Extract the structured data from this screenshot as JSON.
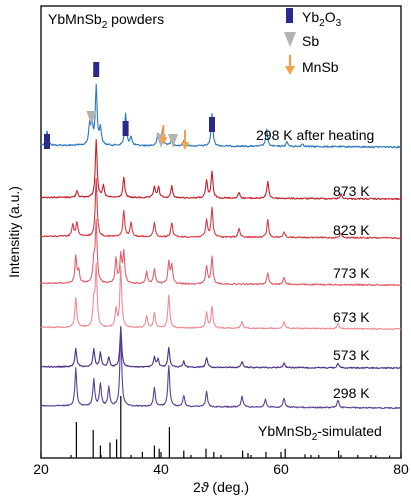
{
  "chart_data": {
    "type": "line",
    "title_prefix": "YbMnSb",
    "title_sub": "2",
    "title_suffix": " powders",
    "xlabel_main": "2",
    "xlabel_theta": "ϑ",
    "xlabel_unit": " (deg.)",
    "ylabel": "Intensitiy (a.u.)",
    "xlim": [
      20,
      80
    ],
    "x_ticks": [
      "20",
      "40",
      "60",
      "80"
    ],
    "x_tick_values": [
      20,
      40,
      60,
      80
    ],
    "legend": [
      {
        "label": "Yb",
        "sub": "2",
        "label2": "O",
        "sub2": "3",
        "marker": "bar",
        "color": "#2a2a8c"
      },
      {
        "label": "Sb",
        "marker": "triangle",
        "color": "#b3b3b3"
      },
      {
        "label": "MnSb",
        "marker": "arrow",
        "color": "#f5a04a"
      }
    ],
    "series": [
      {
        "name": "298 K after heating",
        "color": "#2a78c0",
        "peaks": [
          [
            21.0,
            0.25
          ],
          [
            28.1,
            0.35
          ],
          [
            28.5,
            0.35
          ],
          [
            29.2,
            1.0
          ],
          [
            29.9,
            0.3
          ],
          [
            34.1,
            0.55
          ],
          [
            35.0,
            0.15
          ],
          [
            39.5,
            0.2
          ],
          [
            40.3,
            0.3
          ],
          [
            41.8,
            0.15
          ],
          [
            43.9,
            0.1
          ],
          [
            48.5,
            0.55
          ],
          [
            57.6,
            0.3
          ],
          [
            61.0,
            0.08
          ],
          [
            63.6,
            0.05
          ]
        ]
      },
      {
        "name": "873 K",
        "color": "#c81e28",
        "peaks": [
          [
            26.0,
            0.12
          ],
          [
            29.2,
            1.0
          ],
          [
            30.4,
            0.2
          ],
          [
            33.8,
            0.35
          ],
          [
            38.9,
            0.2
          ],
          [
            39.6,
            0.18
          ],
          [
            41.8,
            0.2
          ],
          [
            47.6,
            0.3
          ],
          [
            48.5,
            0.45
          ],
          [
            53.0,
            0.1
          ],
          [
            57.8,
            0.3
          ],
          [
            70.0,
            0.08
          ]
        ]
      },
      {
        "name": "823 K",
        "color": "#d83a45",
        "peaks": [
          [
            25.3,
            0.2
          ],
          [
            26.0,
            0.25
          ],
          [
            29.2,
            1.0
          ],
          [
            33.8,
            0.45
          ],
          [
            35.0,
            0.25
          ],
          [
            38.9,
            0.25
          ],
          [
            41.8,
            0.25
          ],
          [
            47.6,
            0.3
          ],
          [
            48.5,
            0.5
          ],
          [
            53.0,
            0.15
          ],
          [
            57.8,
            0.3
          ],
          [
            60.5,
            0.1
          ],
          [
            70.0,
            0.08
          ]
        ]
      },
      {
        "name": "773 K",
        "color": "#e65d6a",
        "peaks": [
          [
            25.8,
            0.45
          ],
          [
            26.3,
            0.2
          ],
          [
            28.8,
            0.35
          ],
          [
            29.2,
            1.0
          ],
          [
            32.5,
            0.4
          ],
          [
            33.3,
            0.45
          ],
          [
            33.8,
            0.5
          ],
          [
            37.6,
            0.2
          ],
          [
            38.9,
            0.25
          ],
          [
            41.3,
            0.35
          ],
          [
            41.8,
            0.3
          ],
          [
            47.6,
            0.3
          ],
          [
            48.5,
            0.45
          ],
          [
            57.8,
            0.2
          ],
          [
            60.5,
            0.12
          ]
        ]
      },
      {
        "name": "673 K",
        "color": "#f08a94",
        "peaks": [
          [
            25.8,
            0.5
          ],
          [
            28.8,
            0.4
          ],
          [
            29.2,
            1.0
          ],
          [
            32.5,
            0.3
          ],
          [
            33.3,
            1.0
          ],
          [
            37.6,
            0.2
          ],
          [
            38.9,
            0.25
          ],
          [
            41.3,
            0.55
          ],
          [
            47.6,
            0.25
          ],
          [
            48.5,
            0.35
          ],
          [
            53.5,
            0.12
          ],
          [
            60.5,
            0.12
          ],
          [
            69.5,
            0.1
          ]
        ]
      },
      {
        "name": "573 K",
        "color": "#4a2f88",
        "peaks": [
          [
            25.8,
            0.45
          ],
          [
            28.8,
            0.45
          ],
          [
            29.9,
            0.35
          ],
          [
            31.3,
            0.25
          ],
          [
            33.3,
            1.0
          ],
          [
            38.9,
            0.25
          ],
          [
            39.5,
            0.2
          ],
          [
            41.3,
            0.5
          ],
          [
            43.8,
            0.15
          ],
          [
            47.6,
            0.25
          ],
          [
            53.5,
            0.15
          ],
          [
            60.5,
            0.12
          ],
          [
            69.5,
            0.1
          ]
        ]
      },
      {
        "name": "298 K",
        "color": "#5a3f98",
        "peaks": [
          [
            25.8,
            0.5
          ],
          [
            28.8,
            0.35
          ],
          [
            29.9,
            0.3
          ],
          [
            31.3,
            0.25
          ],
          [
            33.3,
            1.0
          ],
          [
            38.9,
            0.25
          ],
          [
            41.3,
            0.55
          ],
          [
            43.8,
            0.15
          ],
          [
            47.6,
            0.2
          ],
          [
            53.5,
            0.15
          ],
          [
            57.4,
            0.1
          ],
          [
            60.5,
            0.12
          ],
          [
            69.5,
            0.1
          ]
        ]
      },
      {
        "name": "YbMnSb",
        "name_sub": "2",
        "name_suffix": "-simulated",
        "color": "#000000",
        "sticks": [
          [
            25.9,
            0.58
          ],
          [
            28.7,
            0.45
          ],
          [
            29.9,
            0.2
          ],
          [
            31.5,
            0.25
          ],
          [
            32.6,
            0.3
          ],
          [
            33.3,
            1.0
          ],
          [
            36.9,
            0.1
          ],
          [
            38.9,
            0.2
          ],
          [
            39.7,
            0.15
          ],
          [
            41.4,
            0.5
          ],
          [
            43.8,
            0.12
          ],
          [
            47.5,
            0.15
          ],
          [
            48.8,
            0.1
          ],
          [
            53.6,
            0.12
          ],
          [
            54.5,
            0.08
          ],
          [
            57.5,
            0.1
          ],
          [
            60.7,
            0.15
          ],
          [
            64.0,
            0.06
          ],
          [
            66.3,
            0.05
          ],
          [
            69.6,
            0.12
          ],
          [
            72.8,
            0.05
          ],
          [
            75.8,
            0.04
          ],
          [
            78.1,
            0.04
          ]
        ]
      }
    ],
    "phase_markers": {
      "Yb2O3": [
        21.0,
        29.2,
        34.1,
        48.5
      ],
      "Sb": [
        28.4,
        40.0,
        42.0
      ],
      "MnSb": [
        40.4,
        44.0
      ]
    }
  }
}
